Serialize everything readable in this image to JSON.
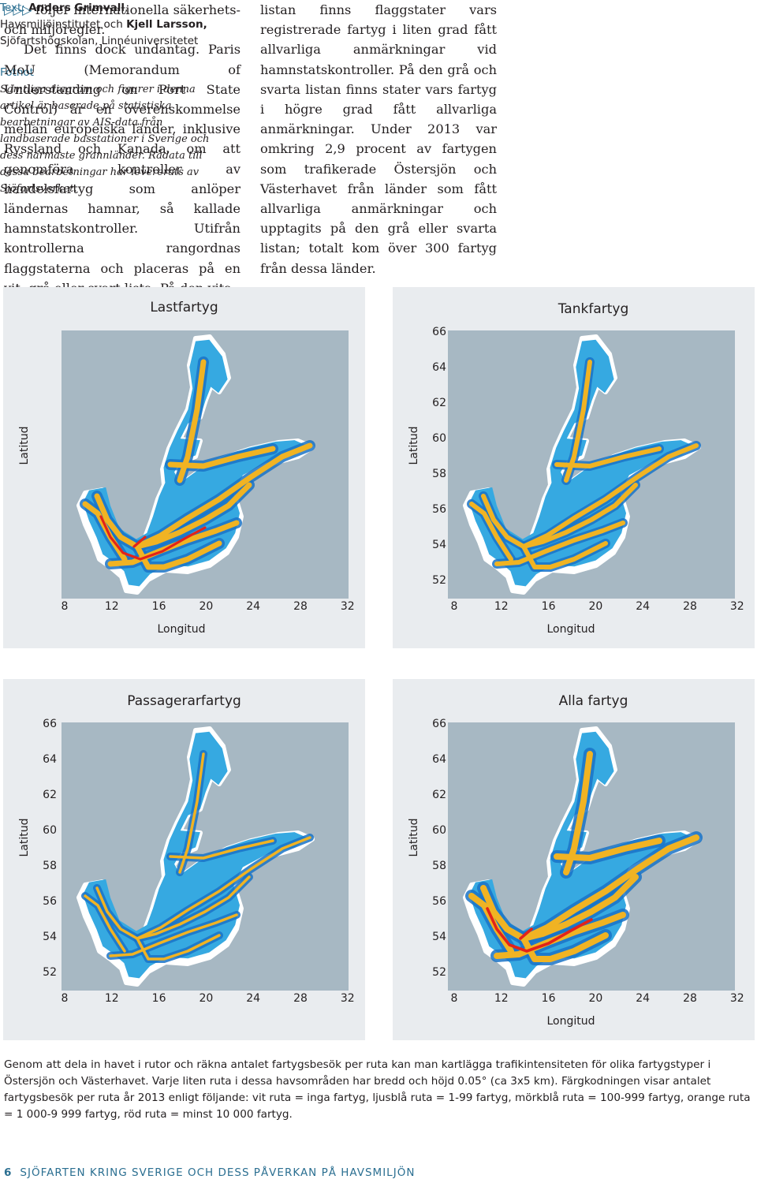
{
  "article": {
    "arrows": "▷▷▷",
    "col1_p1": "följer internationella säkerhets- och miljöregler.",
    "col1_p2": "Det finns dock undantag. Paris MoU (Memorandum of Understanding on Port State Control) är en överenskommelse mellan europeiska länder, inklusive Ryssland och Kanada, om att genomföra kontroller av handelsfartyg som anlöper ländernas hamnar, så kallade hamnstatskontroller. Utifrån kontrollerna rangordnas flaggstaterna och placeras på en vit, grå eller svart lista. På den vita",
    "col2_p1": "listan finns flaggstater vars registrerade fartyg i liten grad fått allvarliga anmärkningar vid hamnstatskontroller. På den grå och svarta listan finns stater vars fartyg i högre grad fått allvarliga anmärkningar. Under 2013 var omkring 2,9 procent av fartygen som trafikerade Östersjön och Västerhavet från länder som fått allvarliga anmärkningar och upptagits på den grå eller svarta listan; totalt kom över 300 fartyg från dessa länder."
  },
  "credits": {
    "label": "Text:",
    "author1": "Anders Grimvall",
    "affil1": ", Havsmiljöinstitutet och ",
    "author2": "Kjell Larsson,",
    "affil2": " Sjöfartshögskolan, Linnéuniversitetet",
    "footnote_heading": "Fotnot",
    "footnote_text": "Samtliga diagram och figurer i denna artikel är baserade på statistiska bearbetningar av AIS-data från landbaserade basstationer i Sverige och dess närmaste grannländer. Rådata till dessa bearbetningar har levererats av Sjöfartsverket."
  },
  "maps": {
    "y_ticks": [
      "66",
      "64",
      "62",
      "60",
      "58",
      "56",
      "54",
      "52"
    ],
    "x_ticks": [
      "8",
      "12",
      "16",
      "20",
      "24",
      "28",
      "32"
    ],
    "y_label": "Latitud",
    "x_label": "Longitud",
    "panels": [
      {
        "title": "Lastfartyg",
        "intensity": "high"
      },
      {
        "title": "Tankfartyg",
        "intensity": "medium"
      },
      {
        "title": "Passagerarfartyg",
        "intensity": "low"
      },
      {
        "title": "Alla fartyg",
        "intensity": "max"
      }
    ],
    "colors": {
      "no_ships": "#ffffff",
      "light_blue": "#36a9e1",
      "dark_blue": "#1a73c7",
      "orange": "#f0b323",
      "red": "#e2231a",
      "land": "#a7b8c3"
    }
  },
  "caption": "Genom att dela in havet i rutor och räkna antalet fartygsbesök per ruta kan man kartlägga trafikintensiteten för olika fartygstyper i Östersjön och Västerhavet. Varje liten ruta i dessa havsområden har bredd och höjd 0.05° (ca 3x5 km). Färgkodningen visar antalet fartygsbesök per ruta år 2013 enligt följande: vit ruta = inga fartyg, ljusblå ruta = 1-99 fartyg, mörkblå ruta = 100-999 fartyg, orange ruta = 1 000-9 999 fartyg, röd ruta = minst 10 000 fartyg.",
  "footer": {
    "page_number": "6",
    "title": "SJÖFARTEN KRING SVERIGE OCH DESS PÅVERKAN PÅ HAVSMILJÖN"
  }
}
